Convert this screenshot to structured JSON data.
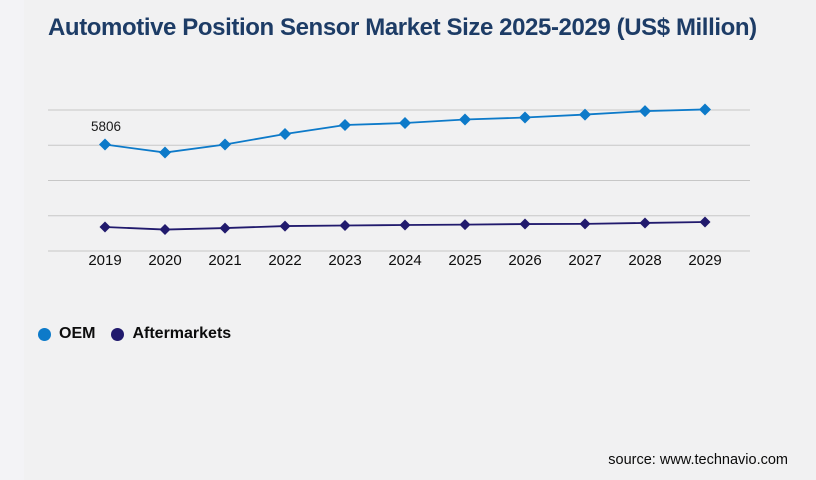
{
  "page": {
    "background": "#f1f1f2",
    "background_left_strip": "#f3f3f6"
  },
  "header": {
    "title": "Automotive Position Sensor Market Size 2025-2029 (US$ Million)",
    "title_color": "#1d3c66"
  },
  "chart_data": {
    "type": "line",
    "title": "Automotive Position Sensor Market Size 2025-2029 (US$ Million)",
    "categories": [
      "2019",
      "2020",
      "2021",
      "2022",
      "2023",
      "2024",
      "2025",
      "2026",
      "2027",
      "2028",
      "2029"
    ],
    "series": [
      {
        "name": "OEM",
        "color": "#0d7ac9",
        "marker": "diamond",
        "marker_size": 6,
        "values": [
          5806,
          5370,
          5810,
          6380,
          6870,
          6980,
          7170,
          7280,
          7440,
          7630,
          7720
        ]
      },
      {
        "name": "Aftermarkets",
        "color": "#211a6d",
        "marker": "diamond",
        "marker_size": 5.5,
        "values": [
          1310,
          1170,
          1250,
          1360,
          1390,
          1420,
          1440,
          1470,
          1480,
          1530,
          1580
        ]
      }
    ],
    "data_labels": [
      {
        "series": "OEM",
        "category": "2019",
        "text": "5806"
      }
    ],
    "xlabel": "",
    "ylabel": "",
    "ylim": [
      0,
      7690
    ],
    "gridlines": 5,
    "grid_color": "#c7c7c7",
    "y_axis_labels_visible": false,
    "legend_position": "bottom-left"
  },
  "legend": {
    "items": [
      {
        "label": "OEM",
        "color": "#0d7ac9"
      },
      {
        "label": "Aftermarkets",
        "color": "#211a6d"
      }
    ]
  },
  "footer": {
    "source_text": "source: www.technavio.com"
  }
}
